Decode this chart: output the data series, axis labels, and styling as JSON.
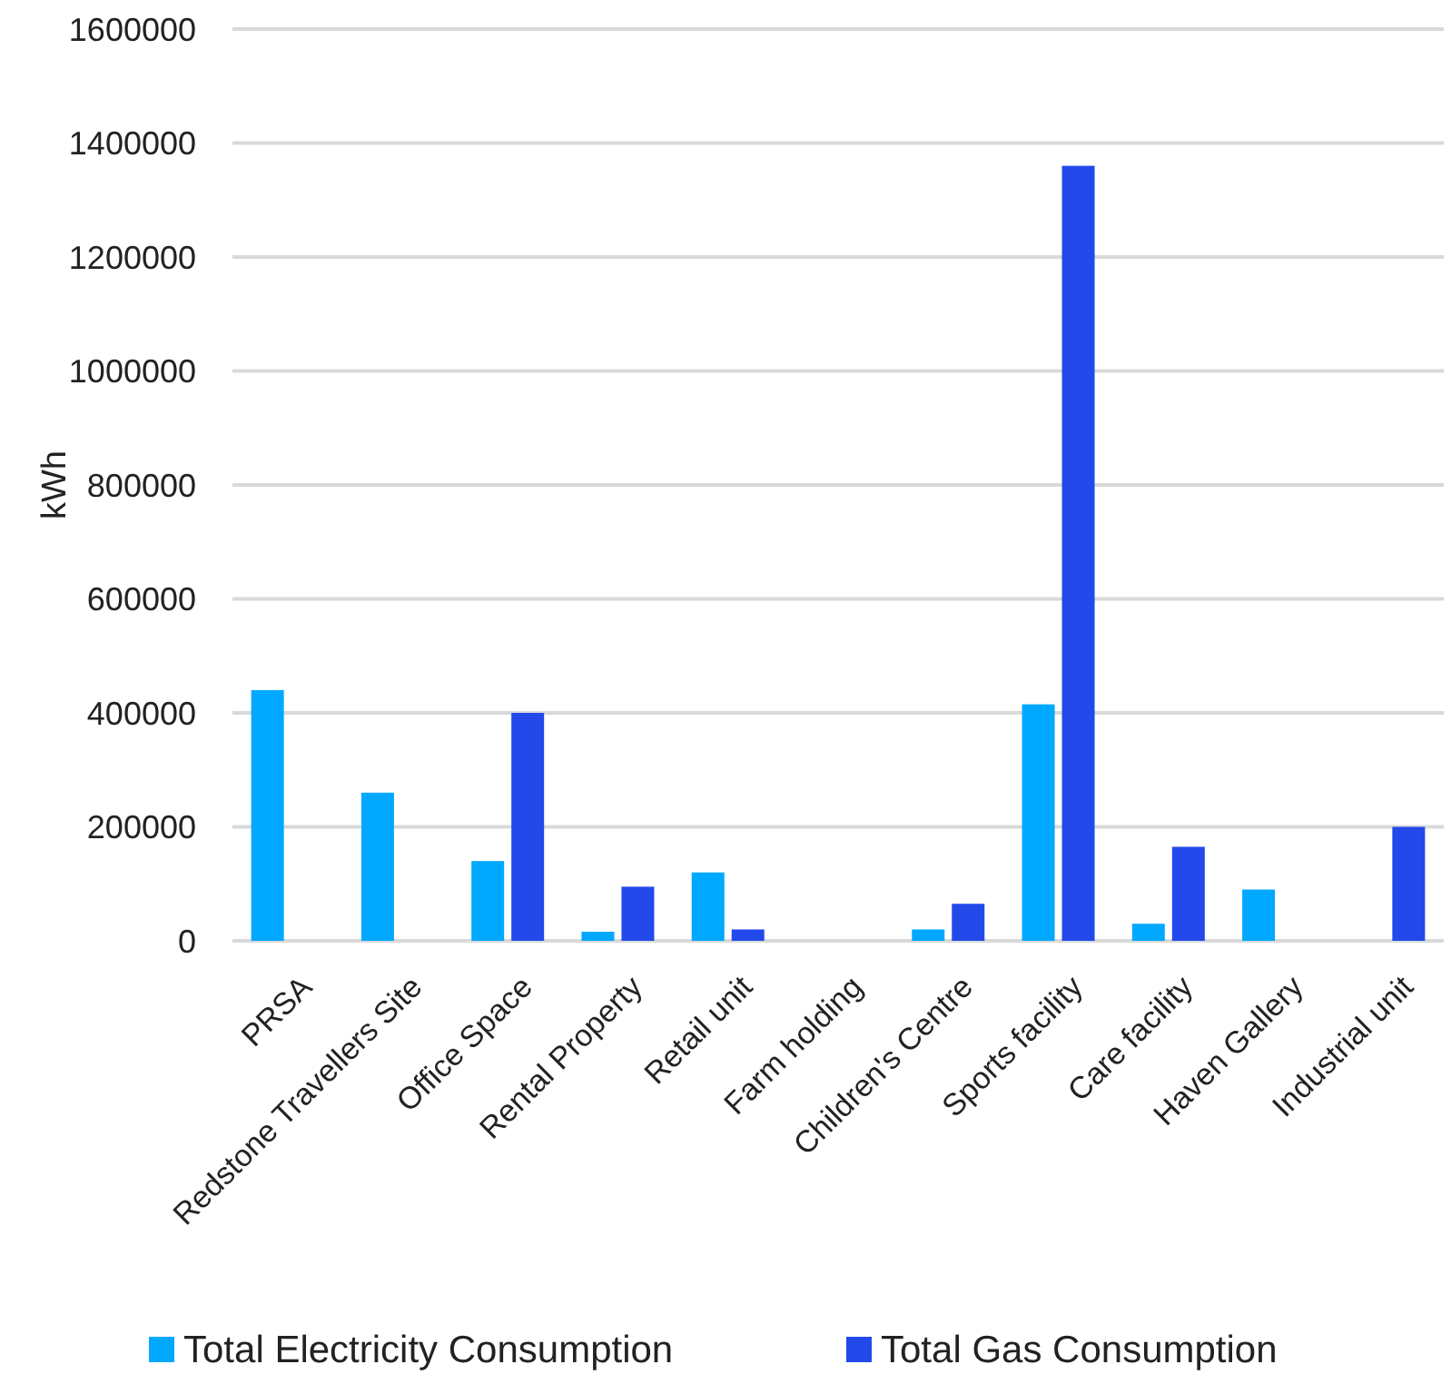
{
  "chart_data": {
    "type": "bar",
    "ylabel": "kWh",
    "categories": [
      "PRSA",
      "Redstone Travellers Site",
      "Office Space",
      "Rental Property",
      "Retail unit",
      "Farm holding",
      "Children's Centre",
      "Sports facility",
      "Care facility",
      "Haven Gallery",
      "Industrial unit"
    ],
    "series": [
      {
        "name": "Total Electricity Consumption",
        "color": "#00a8ff",
        "values": [
          440000,
          260000,
          140000,
          16000,
          120000,
          null,
          20000,
          415000,
          30000,
          90000,
          null
        ]
      },
      {
        "name": "Total Gas Consumption",
        "color": "#2349eb",
        "values": [
          null,
          null,
          400000,
          95000,
          20000,
          null,
          65000,
          1360000,
          165000,
          null,
          200000
        ]
      }
    ],
    "ylim": [
      0,
      1600000
    ],
    "yticks": [
      0,
      200000,
      400000,
      600000,
      800000,
      1000000,
      1200000,
      1400000,
      1600000
    ],
    "grid": "y",
    "legend": "bottom"
  }
}
